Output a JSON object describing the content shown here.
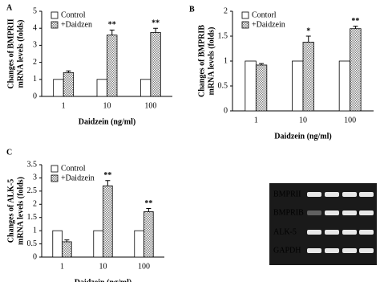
{
  "chart_data": [
    {
      "type": "bar",
      "panel": "A",
      "ylabel": [
        "Changes of BMPRII",
        "mRNA levels (folds)"
      ],
      "xlabel": "Daidzein (ng/ml)",
      "categories": [
        "1",
        "10",
        "100"
      ],
      "series": [
        {
          "name": "Control",
          "color": "#ffffff",
          "values": [
            1,
            1,
            1
          ]
        },
        {
          "name": "+Daidzen",
          "color": "#808080",
          "values": [
            1.4,
            3.6,
            3.75
          ],
          "errors": [
            0.1,
            0.3,
            0.25
          ],
          "markers": [
            null,
            "**",
            "**"
          ]
        }
      ],
      "ylim": [
        0,
        5
      ],
      "yticks": [
        0,
        1,
        2,
        3,
        4,
        5
      ]
    },
    {
      "type": "bar",
      "panel": "B",
      "ylabel": [
        "Changes of BMPRIB",
        "mRNA levels (folds)"
      ],
      "xlabel": "Daidzein (ng/ml)",
      "categories": [
        "1",
        "10",
        "100"
      ],
      "series": [
        {
          "name": "Contorl",
          "color": "#ffffff",
          "values": [
            1,
            1,
            1
          ]
        },
        {
          "name": "+Daidzein",
          "color": "#808080",
          "values": [
            0.92,
            1.38,
            1.65
          ],
          "errors": [
            0.03,
            0.12,
            0.05
          ],
          "markers": [
            null,
            "*",
            "**"
          ]
        }
      ],
      "ylim": [
        0,
        2
      ],
      "yticks": [
        0,
        0.5,
        1,
        1.5,
        2
      ]
    },
    {
      "type": "bar",
      "panel": "C",
      "ylabel": [
        "Changes of ALK-5",
        "mRNA levels (folds)"
      ],
      "xlabel": "Daidzein (ng/ml)",
      "categories": [
        "1",
        "10",
        "100"
      ],
      "series": [
        {
          "name": "Control",
          "color": "#ffffff",
          "values": [
            1,
            1,
            1
          ]
        },
        {
          "name": "+Daidzein",
          "color": "#808080",
          "values": [
            0.58,
            2.7,
            1.72
          ],
          "errors": [
            0.07,
            0.2,
            0.12
          ],
          "markers": [
            null,
            "**",
            "**"
          ]
        }
      ],
      "ylim": [
        0,
        3.5
      ],
      "yticks": [
        0,
        0.5,
        1,
        1.5,
        2,
        2.5,
        3,
        3.5
      ]
    }
  ],
  "gel": {
    "labels": [
      "BMPRII",
      "BMPRIB",
      "ALK-5",
      "GAPDH"
    ]
  }
}
